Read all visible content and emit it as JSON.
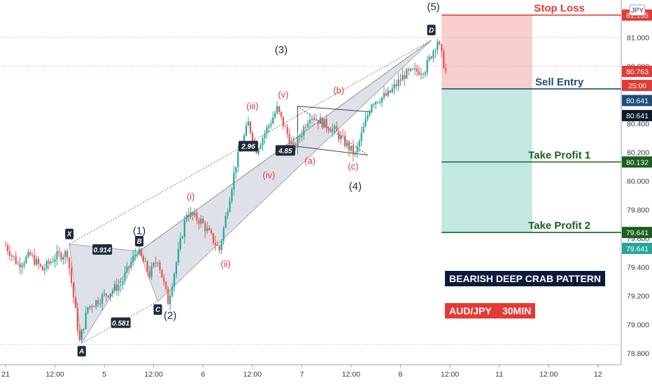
{
  "chart_data": {
    "type": "candlestick",
    "symbol": "AUD/JPY",
    "timeframe": "30MIN",
    "currency_label": "JPY",
    "ylim": [
      78.72,
      81.26
    ],
    "y_ticks": [
      {
        "v": 81.0,
        "t": "81.000"
      },
      {
        "v": 80.8,
        "t": "80.800"
      },
      {
        "v": 80.4,
        "t": "80.400"
      },
      {
        "v": 80.2,
        "t": "80.200"
      },
      {
        "v": 80.0,
        "t": "80.000"
      },
      {
        "v": 79.8,
        "t": "79.800"
      },
      {
        "v": 79.6,
        "t": "79.600"
      },
      {
        "v": 79.4,
        "t": "79.400"
      },
      {
        "v": 79.2,
        "t": "79.200"
      },
      {
        "v": 79.0,
        "t": "79.000"
      },
      {
        "v": 78.8,
        "t": "78.800"
      }
    ],
    "x_ticks": [
      {
        "i": 0,
        "t": "21"
      },
      {
        "i": 24,
        "t": "12:00"
      },
      {
        "i": 48,
        "t": "5"
      },
      {
        "i": 72,
        "t": "12:00"
      },
      {
        "i": 96,
        "t": "6"
      },
      {
        "i": 120,
        "t": "12:00"
      },
      {
        "i": 144,
        "t": "7"
      },
      {
        "i": 168,
        "t": "12:00"
      },
      {
        "i": 192,
        "t": "8"
      },
      {
        "i": 216,
        "t": "12:00"
      },
      {
        "i": 240,
        "t": "11"
      },
      {
        "i": 264,
        "t": "12:00"
      },
      {
        "i": 288,
        "t": "12"
      }
    ],
    "price_path": [
      [
        0,
        79.55
      ],
      [
        6,
        79.42
      ],
      [
        12,
        79.48
      ],
      [
        18,
        79.38
      ],
      [
        24,
        79.47
      ],
      [
        30,
        79.5
      ],
      [
        36,
        78.88
      ],
      [
        40,
        79.12
      ],
      [
        48,
        79.2
      ],
      [
        56,
        79.28
      ],
      [
        64,
        79.52
      ],
      [
        70,
        79.35
      ],
      [
        74,
        79.46
      ],
      [
        79,
        79.16
      ],
      [
        84,
        79.5
      ],
      [
        88,
        79.78
      ],
      [
        95,
        79.72
      ],
      [
        104,
        79.52
      ],
      [
        112,
        80.12
      ],
      [
        118,
        80.4
      ],
      [
        122,
        80.22
      ],
      [
        132,
        80.5
      ],
      [
        140,
        80.22
      ],
      [
        148,
        80.46
      ],
      [
        160,
        80.35
      ],
      [
        170,
        80.18
      ],
      [
        178,
        80.55
      ],
      [
        186,
        80.6
      ],
      [
        194,
        80.74
      ],
      [
        204,
        80.78
      ],
      [
        210,
        80.98
      ],
      [
        214,
        80.76
      ]
    ],
    "pattern_points": [
      {
        "name": "X",
        "i": 31,
        "v": 79.56
      },
      {
        "name": "A",
        "i": 37,
        "v": 78.87
      },
      {
        "name": "B",
        "i": 65,
        "v": 79.51
      },
      {
        "name": "C",
        "i": 74,
        "v": 79.16
      },
      {
        "name": "D",
        "i": 207,
        "v": 80.98
      }
    ],
    "ratios": [
      {
        "t": "0.914",
        "i": 47,
        "v": 79.52
      },
      {
        "t": "0.581",
        "i": 56,
        "v": 79.01
      },
      {
        "t": "2.96",
        "i": 118,
        "v": 80.24
      },
      {
        "t": "4.85",
        "i": 136,
        "v": 80.21
      }
    ],
    "wave_labels": [
      {
        "t": "(1)",
        "i": 65,
        "v": 79.63,
        "c": "#1e2a3a"
      },
      {
        "t": "(2)",
        "i": 80,
        "v": 79.04,
        "c": "#1e2a3a"
      },
      {
        "t": "(3)",
        "i": 134,
        "v": 80.89,
        "c": "#1e2a3a"
      },
      {
        "t": "(4)",
        "i": 170,
        "v": 79.94,
        "c": "#1e2a3a"
      },
      {
        "t": "(5)",
        "i": 208,
        "v": 81.19,
        "c": "#1e2a3a"
      },
      {
        "t": "(i)",
        "i": 90,
        "v": 79.87,
        "c": "#e53935"
      },
      {
        "t": "(ii)",
        "i": 107,
        "v": 79.4,
        "c": "#e53935"
      },
      {
        "t": "(iii)",
        "i": 120,
        "v": 80.5,
        "c": "#e53935"
      },
      {
        "t": "(iv)",
        "i": 128,
        "v": 80.02,
        "c": "#e53935"
      },
      {
        "t": "(v)",
        "i": 135,
        "v": 80.58,
        "c": "#e53935"
      },
      {
        "t": "(a)",
        "i": 148,
        "v": 80.12,
        "c": "#e53935"
      },
      {
        "t": "(b)",
        "i": 162,
        "v": 80.61,
        "c": "#e53935"
      },
      {
        "t": "(c)",
        "i": 169,
        "v": 80.08,
        "c": "#e53935"
      }
    ],
    "levels": {
      "stop_loss": {
        "label": "Stop Loss",
        "v": 81.155
      },
      "entry": {
        "label": "Sell Entry",
        "v": 80.641
      },
      "take_profit_1": {
        "label": "Take Profit 1",
        "v": 80.132
      },
      "take_profit_2": {
        "label": "Take Profit 2",
        "v": 79.641
      }
    },
    "price_tags": [
      {
        "t": "81.155",
        "v": 81.155,
        "bg": "#e53935",
        "fg": "#ffffff"
      },
      {
        "t": "80.763",
        "v": 80.763,
        "bg": "#e53935",
        "fg": "#ffffff"
      },
      {
        "t": "25:00",
        "v": 80.665,
        "bg": "#e53935",
        "fg": "#ffffff"
      },
      {
        "t": "80.641",
        "v": 80.56,
        "bg": "#1f4e79",
        "fg": "#ffffff"
      },
      {
        "t": "80.641",
        "v": 80.455,
        "bg": "#0b1a2b",
        "fg": "#ffffff"
      },
      {
        "t": "80.132",
        "v": 80.132,
        "bg": "#1b5e20",
        "fg": "#ffffff"
      },
      {
        "t": "79.641",
        "v": 79.641,
        "bg": "#1b5e20",
        "fg": "#ffffff"
      },
      {
        "t": "79.641",
        "v": 79.53,
        "bg": "#26a69a",
        "fg": "#ffffff"
      }
    ],
    "colors": {
      "up": "#26a69a",
      "down": "#ef5350",
      "pattern_fill": "#c5cad6",
      "stop_zone": "#f8c6c6",
      "profit_zone": "#b7e4dc",
      "stop_line": "#e53935",
      "entry_line": "#1f4e79",
      "tp_line": "#1b5e20",
      "level_text_red": "#e53935",
      "level_text_blue": "#1f4e79",
      "level_text_green": "#1b5e20"
    }
  },
  "annotations": {
    "pattern_title": "BEARISH DEEP CRAB PATTERN",
    "pair_label": "AUD/JPY    30MIN"
  }
}
